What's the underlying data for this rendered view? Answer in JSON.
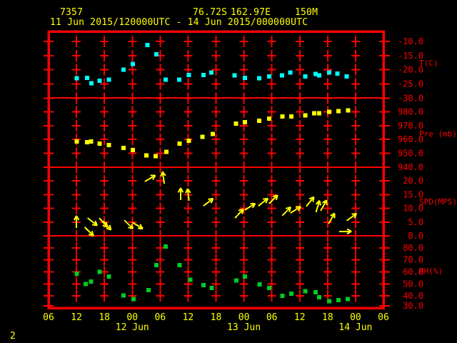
{
  "header": {
    "station_id": "7357",
    "latitude": "76.72S",
    "longitude": "162.97E",
    "elevation": "150M",
    "time_range": "11 Jun 2015/120000UTC - 14 Jun 2015/000000UTC"
  },
  "page_number": "2",
  "colors": {
    "background": "#000000",
    "grid": "#ff0000",
    "axis_text": "#ff0000",
    "header_text": "#ffff00",
    "temperature": "#00ffff",
    "pressure": "#ffff00",
    "wind": "#ffff00",
    "humidity": "#00cc22"
  },
  "x_axis": {
    "hours_range": [
      6,
      78
    ],
    "tick_interval_hours": 6,
    "hour_labels": [
      "06",
      "12",
      "18",
      "00",
      "06",
      "12",
      "18",
      "00",
      "06",
      "12",
      "18",
      "00",
      "06"
    ],
    "date_labels": [
      "12 Jun",
      "13 Jun",
      "14 Jun"
    ],
    "date_tick_indices": [
      3,
      7,
      11
    ],
    "start": "11 Jun 2015 0600UTC",
    "end": "14 Jun 2015 0600UTC"
  },
  "chart_data": [
    {
      "type": "scatter",
      "name": "temperature",
      "ylabel": "T(C)",
      "color": "#00ffff",
      "ylim": [
        -29.9,
        -6.5
      ],
      "yticks": [
        -10,
        -15,
        -20,
        -25,
        -30
      ],
      "x_hours": [
        12.1,
        14.3,
        15.2,
        17.0,
        19.0,
        22.1,
        24.1,
        27.3,
        29.2,
        31.2,
        34.1,
        36.2,
        39.3,
        41.0,
        46.0,
        48.2,
        51.3,
        53.4,
        56.2,
        58.0,
        61.2,
        63.4,
        64.2,
        66.3,
        68.1,
        70.1
      ],
      "values": [
        -23.0,
        -22.8,
        -24.8,
        -23.8,
        -23.5,
        -20.0,
        -18.0,
        -11.3,
        -14.5,
        -23.5,
        -23.5,
        -21.8,
        -21.8,
        -21.0,
        -22.0,
        -22.8,
        -23.0,
        -22.3,
        -22.0,
        -21.0,
        -22.3,
        -21.5,
        -22.0,
        -21.0,
        -21.3,
        -22.3
      ]
    },
    {
      "type": "scatter",
      "name": "pressure",
      "ylabel": "Pre (mb)",
      "color": "#ffff00",
      "ylim": [
        940,
        990
      ],
      "yticks": [
        980,
        970,
        960,
        950,
        940
      ],
      "x_hours": [
        12.1,
        14.3,
        15.1,
        17.0,
        19.0,
        22.1,
        24.1,
        27.0,
        29.0,
        31.3,
        34.2,
        36.2,
        39.1,
        41.3,
        46.3,
        48.2,
        51.3,
        53.4,
        56.3,
        58.2,
        61.2,
        63.1,
        64.2,
        66.3,
        68.3,
        70.4
      ],
      "values": [
        958.5,
        958.0,
        958.5,
        957.0,
        956.0,
        954.0,
        952.5,
        948.5,
        948.0,
        951.0,
        957.0,
        959.0,
        962.0,
        964.0,
        971.5,
        972.5,
        973.5,
        975.0,
        976.5,
        976.5,
        977.5,
        979.0,
        979.0,
        980.0,
        980.5,
        981.0
      ]
    },
    {
      "type": "vector",
      "name": "wind-speed",
      "ylabel": "SPD(MPS)",
      "color": "#ffff00",
      "ylim": [
        0,
        25
      ],
      "yticks": [
        20,
        15,
        10,
        5,
        0
      ],
      "angle_convention": "degrees CCW, 0 = pointing right/east, 90 = pointing up",
      "x_hours": [
        12.0,
        13.8,
        14.4,
        16.9,
        17.7,
        22.3,
        24.0,
        26.7,
        30.9,
        34.4,
        36.2,
        39.3,
        46.1,
        48.2,
        51.1,
        53.4,
        56.2,
        58.0,
        61.4,
        63.5,
        64.5,
        66.2,
        68.5,
        70.1
      ],
      "speeds_mps": [
        2.9,
        3.1,
        6.5,
        6.5,
        5.5,
        5.7,
        4.9,
        19.8,
        19.0,
        13.0,
        12.8,
        10.9,
        6.5,
        9.4,
        10.9,
        11.7,
        7.3,
        8.3,
        10.7,
        8.6,
        9.1,
        4.4,
        1.6,
        5.5
      ],
      "angles_deg": [
        90,
        -45,
        -38,
        -48,
        -49,
        -45,
        -31,
        30,
        99,
        90,
        97,
        37,
        47,
        32,
        38,
        45,
        45,
        32,
        51,
        73,
        61,
        60,
        0,
        36
      ]
    },
    {
      "type": "scatter",
      "name": "relative-humidity",
      "ylabel": "RH(%)",
      "color": "#00cc22",
      "ylim": [
        30,
        90
      ],
      "yticks": [
        80,
        70,
        60,
        50,
        40,
        30
      ],
      "x_hours": [
        12.1,
        14.0,
        15.1,
        17.0,
        19.0,
        22.1,
        24.3,
        27.5,
        29.2,
        31.2,
        34.2,
        36.5,
        39.3,
        41.1,
        46.4,
        48.2,
        51.4,
        53.4,
        56.3,
        58.2,
        61.2,
        63.4,
        64.2,
        66.3,
        68.3,
        70.3
      ],
      "values": [
        58.5,
        50,
        52,
        60,
        56,
        40.5,
        37.5,
        45,
        65.5,
        81,
        65.5,
        53.5,
        49,
        46.5,
        53,
        56,
        49.5,
        46.5,
        40,
        42,
        44,
        43,
        39,
        35.5,
        36.5,
        37.5
      ]
    }
  ]
}
